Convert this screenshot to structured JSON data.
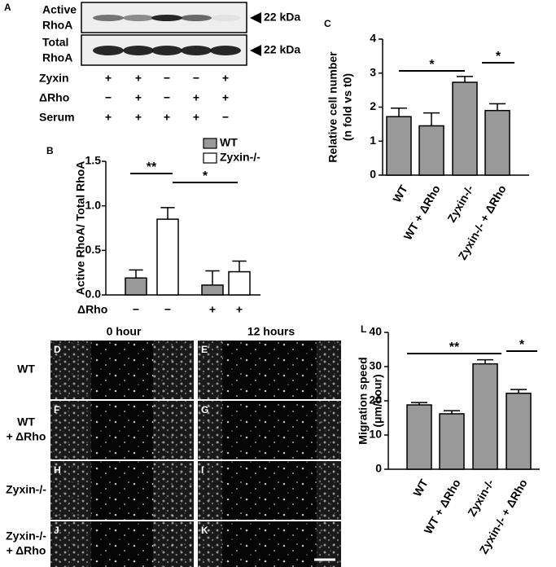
{
  "panel_a": {
    "letter": "A",
    "blots": [
      {
        "label": [
          "Active",
          "RhoA"
        ],
        "size": "22 kDa"
      },
      {
        "label": [
          "Total",
          "RhoA"
        ],
        "size": "22 kDa"
      }
    ],
    "conditions": [
      {
        "name": "Zyxin",
        "signs": [
          "+",
          "+",
          "−",
          "−",
          "+"
        ]
      },
      {
        "name": "ΔRho",
        "signs": [
          "−",
          "+",
          "−",
          "+",
          "+"
        ]
      },
      {
        "name": "Serum",
        "signs": [
          "+",
          "+",
          "+",
          "+",
          "−"
        ]
      }
    ]
  },
  "chart_data": [
    {
      "type": "bar",
      "letter": "B",
      "ylabel": [
        "Active RhoA/ Total RhoA"
      ],
      "xlabel": "ΔRho",
      "categories": [
        "−",
        "−",
        "+",
        "+"
      ],
      "series": [
        {
          "name": "WT",
          "color": "#999999",
          "values": [
            0.19,
            null,
            0.11,
            null
          ],
          "errors": [
            0.09,
            null,
            0.16,
            null
          ]
        },
        {
          "name": "Zyxin-/-",
          "color": "#ffffff",
          "values": [
            null,
            0.85,
            null,
            0.26
          ],
          "errors": [
            null,
            0.13,
            null,
            0.12
          ]
        }
      ],
      "ylim": [
        0,
        1.5
      ],
      "yticks": [
        {
          "value": 0,
          "label": "0.0"
        },
        0.5,
        {
          "value": 1,
          "label": "1.0"
        },
        1.5
      ],
      "annotations": [
        "**",
        "*"
      ]
    },
    {
      "type": "bar",
      "letter": "C",
      "ylabel": [
        "Relative cell number",
        "(n fold vs t0)"
      ],
      "categories": [
        "WT",
        "WT + ΔRho",
        "Zyxin-/-",
        "Zyxin-/- + ΔRho"
      ],
      "series": [
        {
          "color": "#999999",
          "values": [
            1.72,
            1.45,
            2.73,
            1.9
          ],
          "errors": [
            0.25,
            0.38,
            0.17,
            0.2
          ]
        }
      ],
      "ylim": [
        0,
        4
      ],
      "yticks": [
        0,
        1,
        2,
        3,
        4
      ],
      "annotations": [
        "*",
        "*"
      ]
    },
    {
      "type": "bar",
      "letter": "L",
      "ylabel": [
        "Migration speed",
        "(μm/hour)"
      ],
      "categories": [
        "WT",
        "WT + ΔRho",
        "Zyxin-/-",
        "Zyxin-/- + ΔRho"
      ],
      "series": [
        {
          "color": "#999999",
          "values": [
            18.8,
            16.2,
            30.8,
            22.2
          ],
          "errors": [
            0.7,
            0.9,
            1.2,
            1.1
          ]
        }
      ],
      "ylim": [
        0,
        40
      ],
      "yticks": [
        0,
        10,
        20,
        30,
        40
      ],
      "annotations": [
        "**",
        "*"
      ]
    }
  ],
  "panel_images": {
    "headers": [
      "0 hour",
      "12 hours"
    ],
    "rows": [
      [
        "WT"
      ],
      [
        "WT",
        "+ ΔRho"
      ],
      [
        "Zyxin-/-"
      ],
      [
        "Zyxin-/-",
        "+ ΔRho"
      ]
    ],
    "letters": [
      [
        "D",
        "E"
      ],
      [
        "F",
        "G"
      ],
      [
        "H",
        "I"
      ],
      [
        "J",
        "K"
      ]
    ]
  }
}
